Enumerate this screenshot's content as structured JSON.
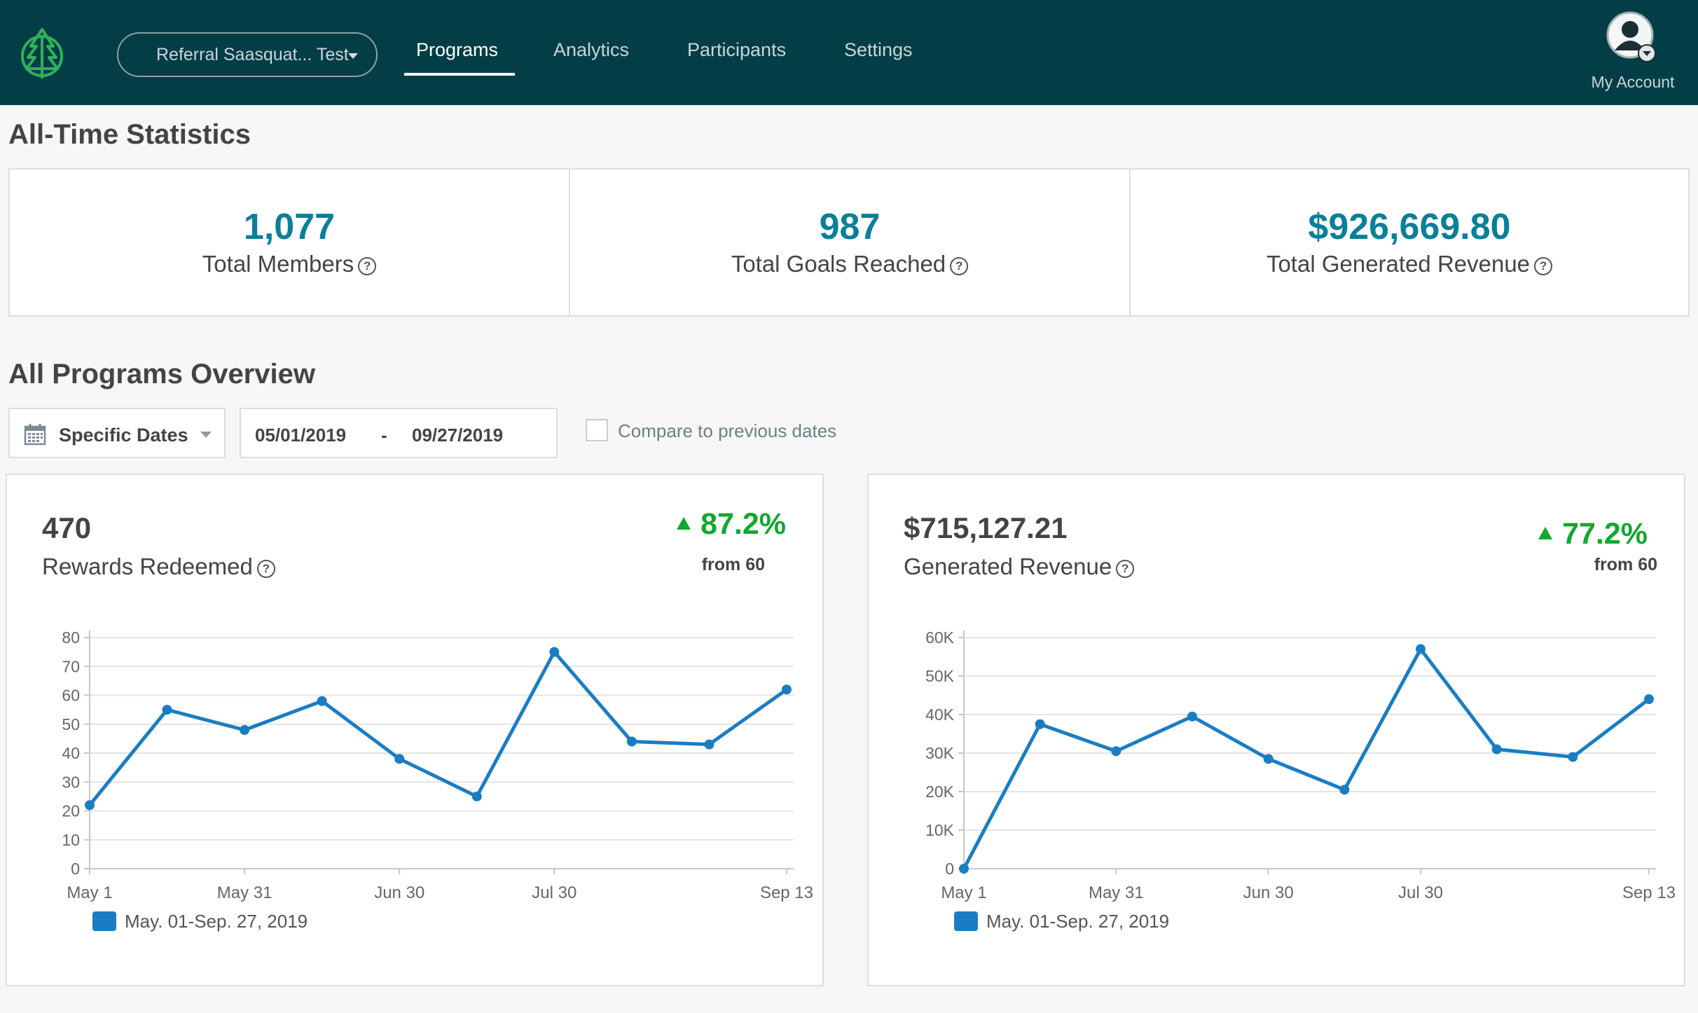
{
  "header": {
    "program_select": "Referral Saasquat... Test",
    "nav": [
      "Programs",
      "Analytics",
      "Participants",
      "Settings"
    ],
    "active_nav": "Programs",
    "account_label": "My Account"
  },
  "all_time": {
    "title": "All-Time Statistics",
    "stats": [
      {
        "value": "1,077",
        "label": "Total Members"
      },
      {
        "value": "987",
        "label": "Total Goals Reached"
      },
      {
        "value": "$926,669.80",
        "label": "Total Generated Revenue"
      }
    ]
  },
  "overview": {
    "title": "All Programs Overview",
    "date_type": "Specific Dates",
    "start_date": "05/01/2019",
    "separator": "-",
    "end_date": "09/27/2019",
    "compare_label": "Compare to previous dates",
    "compare_checked": false
  },
  "colors": {
    "header_bg": "#033d46",
    "accent_value": "#0a7f98",
    "trend_up": "#11a82f",
    "series": "#1a7dc4"
  },
  "chart_data": [
    {
      "type": "line",
      "kpi_value": "470",
      "kpi_label": "Rewards Redeemed",
      "change": "87.2%",
      "change_direction": "up",
      "change_sub": "from 60",
      "x": [
        "May 1",
        "May 16",
        "May 31",
        "Jun 15",
        "Jun 30",
        "Jul 15",
        "Jul 30",
        "Aug 14",
        "Aug 29",
        "Sep 13"
      ],
      "xticks": [
        "May 1",
        "May 31",
        "Jun 30",
        "Jul 30",
        "Sep 13"
      ],
      "yticks": [
        "0",
        "10",
        "20",
        "30",
        "40",
        "50",
        "60",
        "70",
        "80"
      ],
      "ylim": [
        0,
        80
      ],
      "grid": true,
      "series": [
        {
          "name": "May. 01-Sep. 27, 2019",
          "values": [
            22,
            55,
            48,
            58,
            38,
            25,
            75,
            44,
            43,
            62
          ]
        }
      ]
    },
    {
      "type": "line",
      "kpi_value": "$715,127.21",
      "kpi_label": "Generated Revenue",
      "change": "77.2%",
      "change_direction": "up",
      "change_sub": "from 60",
      "x": [
        "May 1",
        "May 16",
        "May 31",
        "Jun 15",
        "Jun 30",
        "Jul 15",
        "Jul 30",
        "Aug 14",
        "Aug 29",
        "Sep 13"
      ],
      "xticks": [
        "May 1",
        "May 31",
        "Jun 30",
        "Jul 30",
        "Sep 13"
      ],
      "yticks": [
        "0",
        "10K",
        "20K",
        "30K",
        "40K",
        "50K",
        "60K"
      ],
      "ylim": [
        0,
        60000
      ],
      "grid": true,
      "series": [
        {
          "name": "May. 01-Sep. 27, 2019",
          "values": [
            0,
            37500,
            30500,
            39500,
            28500,
            20500,
            57000,
            31000,
            29000,
            44000
          ]
        }
      ]
    }
  ]
}
